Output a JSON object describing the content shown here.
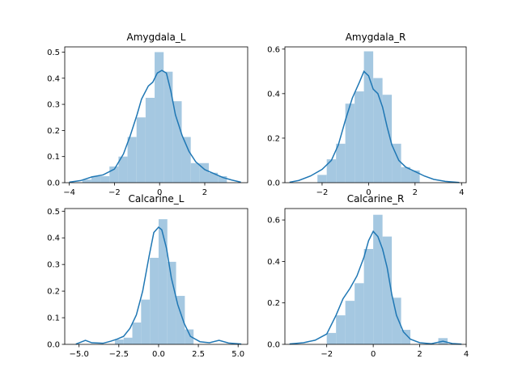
{
  "chart_data": [
    {
      "type": "histogram",
      "title": "Amygdala_L",
      "xlim": [
        -4.2,
        3.9
      ],
      "ylim": [
        0,
        0.52
      ],
      "xticks": [
        -4,
        -2,
        0,
        2
      ],
      "xtick_labels": [
        "−4",
        "−2",
        "0",
        "2"
      ],
      "yticks": [
        0,
        0.1,
        0.2,
        0.3,
        0.4,
        0.5
      ],
      "ytick_labels": [
        "0.0",
        "0.1",
        "0.2",
        "0.3",
        "0.4",
        "0.5"
      ],
      "bins": [
        {
          "x0": -3.42,
          "x1": -3.02,
          "value": 0.012
        },
        {
          "x0": -3.02,
          "x1": -2.62,
          "value": 0.025
        },
        {
          "x0": -2.62,
          "x1": -2.22,
          "value": 0.025
        },
        {
          "x0": -2.22,
          "x1": -1.82,
          "value": 0.062
        },
        {
          "x0": -1.82,
          "x1": -1.42,
          "value": 0.1
        },
        {
          "x0": -1.42,
          "x1": -1.02,
          "value": 0.175
        },
        {
          "x0": -1.02,
          "x1": -0.62,
          "value": 0.25
        },
        {
          "x0": -0.62,
          "x1": -0.22,
          "value": 0.325
        },
        {
          "x0": -0.22,
          "x1": 0.18,
          "value": 0.5
        },
        {
          "x0": 0.18,
          "x1": 0.58,
          "value": 0.425
        },
        {
          "x0": 0.58,
          "x1": 0.98,
          "value": 0.312
        },
        {
          "x0": 0.98,
          "x1": 1.38,
          "value": 0.175
        },
        {
          "x0": 1.38,
          "x1": 1.78,
          "value": 0.075
        },
        {
          "x0": 1.78,
          "x1": 2.18,
          "value": 0.075
        },
        {
          "x0": 2.18,
          "x1": 2.58,
          "value": 0.038
        },
        {
          "x0": 2.58,
          "x1": 2.98,
          "value": 0.025
        }
      ],
      "kde": [
        [
          -4.0,
          0.002
        ],
        [
          -3.5,
          0.008
        ],
        [
          -3.0,
          0.022
        ],
        [
          -2.5,
          0.03
        ],
        [
          -2.0,
          0.052
        ],
        [
          -1.6,
          0.11
        ],
        [
          -1.3,
          0.18
        ],
        [
          -1.0,
          0.26
        ],
        [
          -0.8,
          0.32
        ],
        [
          -0.5,
          0.37
        ],
        [
          -0.3,
          0.385
        ],
        [
          -0.1,
          0.42
        ],
        [
          0.1,
          0.43
        ],
        [
          0.3,
          0.42
        ],
        [
          0.5,
          0.35
        ],
        [
          0.7,
          0.26
        ],
        [
          1.0,
          0.18
        ],
        [
          1.3,
          0.12
        ],
        [
          1.6,
          0.08
        ],
        [
          2.0,
          0.05
        ],
        [
          2.4,
          0.035
        ],
        [
          2.8,
          0.02
        ],
        [
          3.2,
          0.01
        ],
        [
          3.6,
          0.002
        ]
      ]
    },
    {
      "type": "histogram",
      "title": "Amygdala_R",
      "xlim": [
        -3.6,
        4.2
      ],
      "ylim": [
        0,
        0.61
      ],
      "xticks": [
        -2,
        0,
        2,
        4
      ],
      "xtick_labels": [
        "−2",
        "0",
        "2",
        "4"
      ],
      "yticks": [
        0,
        0.2,
        0.4,
        0.6
      ],
      "ytick_labels": [
        "0.0",
        "0.2",
        "0.4",
        "0.6"
      ],
      "bins": [
        {
          "x0": -2.2,
          "x1": -1.8,
          "value": 0.035
        },
        {
          "x0": -1.8,
          "x1": -1.4,
          "value": 0.105
        },
        {
          "x0": -1.4,
          "x1": -1.0,
          "value": 0.175
        },
        {
          "x0": -1.0,
          "x1": -0.6,
          "value": 0.355
        },
        {
          "x0": -0.6,
          "x1": -0.2,
          "value": 0.41
        },
        {
          "x0": -0.2,
          "x1": 0.2,
          "value": 0.59
        },
        {
          "x0": 0.2,
          "x1": 0.6,
          "value": 0.47
        },
        {
          "x0": 0.6,
          "x1": 1.0,
          "value": 0.395
        },
        {
          "x0": 1.0,
          "x1": 1.4,
          "value": 0.175
        },
        {
          "x0": 1.4,
          "x1": 1.8,
          "value": 0.07
        },
        {
          "x0": 1.8,
          "x1": 2.2,
          "value": 0.055
        }
      ],
      "kde": [
        [
          -3.4,
          0.002
        ],
        [
          -3.0,
          0.01
        ],
        [
          -2.5,
          0.03
        ],
        [
          -2.0,
          0.06
        ],
        [
          -1.6,
          0.1
        ],
        [
          -1.3,
          0.17
        ],
        [
          -1.0,
          0.28
        ],
        [
          -0.7,
          0.38
        ],
        [
          -0.4,
          0.45
        ],
        [
          -0.2,
          0.5
        ],
        [
          0.0,
          0.48
        ],
        [
          0.2,
          0.42
        ],
        [
          0.4,
          0.4
        ],
        [
          0.6,
          0.34
        ],
        [
          0.8,
          0.25
        ],
        [
          1.0,
          0.17
        ],
        [
          1.3,
          0.1
        ],
        [
          1.6,
          0.07
        ],
        [
          2.0,
          0.05
        ],
        [
          2.4,
          0.03
        ],
        [
          2.8,
          0.015
        ],
        [
          3.3,
          0.006
        ],
        [
          3.9,
          0.001
        ]
      ]
    },
    {
      "type": "histogram",
      "title": "Calcarine_L",
      "xlim": [
        -5.9,
        5.6
      ],
      "ylim": [
        0,
        0.51
      ],
      "xticks": [
        -5.0,
        -2.5,
        0.0,
        2.5,
        5.0
      ],
      "xtick_labels": [
        "−5.0",
        "−2.5",
        "0.0",
        "2.5",
        "5.0"
      ],
      "yticks": [
        0,
        0.1,
        0.2,
        0.3,
        0.4,
        0.5
      ],
      "ytick_labels": [
        "0.0",
        "0.1",
        "0.2",
        "0.3",
        "0.4",
        "0.5"
      ],
      "bins": [
        {
          "x0": -2.75,
          "x1": -2.2,
          "value": 0.018
        },
        {
          "x0": -2.2,
          "x1": -1.65,
          "value": 0.025
        },
        {
          "x0": -1.65,
          "x1": -1.1,
          "value": 0.082
        },
        {
          "x0": -1.1,
          "x1": -0.55,
          "value": 0.168
        },
        {
          "x0": -0.55,
          "x1": 0.0,
          "value": 0.325
        },
        {
          "x0": 0.0,
          "x1": 0.55,
          "value": 0.47
        },
        {
          "x0": 0.55,
          "x1": 1.1,
          "value": 0.31
        },
        {
          "x0": 1.1,
          "x1": 1.65,
          "value": 0.182
        },
        {
          "x0": 1.65,
          "x1": 2.2,
          "value": 0.056
        }
      ],
      "kde": [
        [
          -5.2,
          0.001
        ],
        [
          -4.6,
          0.015
        ],
        [
          -4.2,
          0.006
        ],
        [
          -3.5,
          0.004
        ],
        [
          -3.0,
          0.012
        ],
        [
          -2.6,
          0.02
        ],
        [
          -2.2,
          0.03
        ],
        [
          -1.8,
          0.06
        ],
        [
          -1.4,
          0.11
        ],
        [
          -1.0,
          0.2
        ],
        [
          -0.6,
          0.33
        ],
        [
          -0.3,
          0.42
        ],
        [
          0.0,
          0.44
        ],
        [
          0.2,
          0.43
        ],
        [
          0.5,
          0.36
        ],
        [
          0.8,
          0.25
        ],
        [
          1.2,
          0.15
        ],
        [
          1.6,
          0.08
        ],
        [
          2.0,
          0.03
        ],
        [
          2.6,
          0.01
        ],
        [
          3.2,
          0.006
        ],
        [
          3.8,
          0.015
        ],
        [
          4.4,
          0.005
        ],
        [
          5.2,
          0.001
        ]
      ]
    },
    {
      "type": "histogram",
      "title": "Calcarine_R",
      "xlim": [
        -3.8,
        4.0
      ],
      "ylim": [
        0,
        0.655
      ],
      "xticks": [
        -2,
        0,
        2,
        4
      ],
      "xtick_labels": [
        "−2",
        "0",
        "2",
        "4"
      ],
      "yticks": [
        0,
        0.2,
        0.4,
        0.6
      ],
      "ytick_labels": [
        "0.0",
        "0.2",
        "0.4",
        "0.6"
      ],
      "bins": [
        {
          "x0": -2.0,
          "x1": -1.6,
          "value": 0.055
        },
        {
          "x0": -1.6,
          "x1": -1.2,
          "value": 0.14
        },
        {
          "x0": -1.2,
          "x1": -0.8,
          "value": 0.21
        },
        {
          "x0": -0.8,
          "x1": -0.4,
          "value": 0.295
        },
        {
          "x0": -0.4,
          "x1": 0.0,
          "value": 0.46
        },
        {
          "x0": 0.0,
          "x1": 0.4,
          "value": 0.625
        },
        {
          "x0": 0.4,
          "x1": 0.8,
          "value": 0.52
        },
        {
          "x0": 0.8,
          "x1": 1.2,
          "value": 0.225
        },
        {
          "x0": 1.2,
          "x1": 1.6,
          "value": 0.07
        },
        {
          "x0": 2.8,
          "x1": 3.2,
          "value": 0.03
        }
      ],
      "kde": [
        [
          -3.6,
          0.002
        ],
        [
          -3.0,
          0.008
        ],
        [
          -2.5,
          0.02
        ],
        [
          -2.0,
          0.05
        ],
        [
          -1.6,
          0.14
        ],
        [
          -1.3,
          0.22
        ],
        [
          -1.0,
          0.27
        ],
        [
          -0.7,
          0.33
        ],
        [
          -0.4,
          0.42
        ],
        [
          -0.2,
          0.5
        ],
        [
          0.0,
          0.545
        ],
        [
          0.2,
          0.52
        ],
        [
          0.4,
          0.46
        ],
        [
          0.6,
          0.37
        ],
        [
          0.8,
          0.24
        ],
        [
          1.0,
          0.14
        ],
        [
          1.3,
          0.06
        ],
        [
          1.6,
          0.025
        ],
        [
          2.0,
          0.008
        ],
        [
          2.5,
          0.003
        ],
        [
          3.0,
          0.015
        ],
        [
          3.4,
          0.004
        ],
        [
          3.8,
          0.001
        ]
      ]
    }
  ],
  "colors": {
    "bar_fill": "#a5c8e1",
    "kde_line": "#1f77b4",
    "axis": "#000000"
  }
}
